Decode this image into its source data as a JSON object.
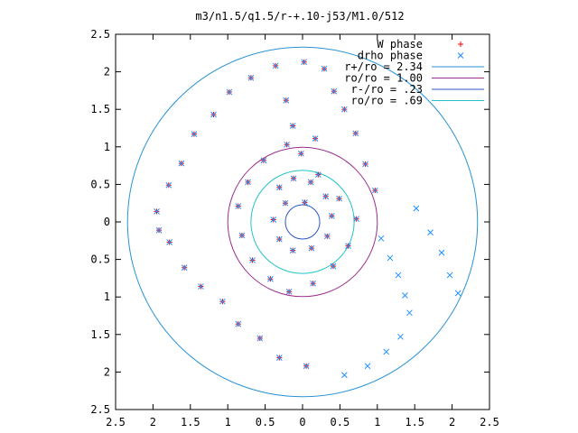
{
  "chart_data": {
    "type": "scatter",
    "title": "m3/n1.5/q1.5/r-+.10-j53/M1.0/512",
    "xlabel": "",
    "ylabel": "",
    "xlim": [
      -2.5,
      2.5
    ],
    "ylim": [
      -2.5,
      2.5
    ],
    "x_tick_values": [
      -2.5,
      -2,
      -1.5,
      -1,
      -0.5,
      0,
      0.5,
      1,
      1.5,
      2,
      2.5
    ],
    "x_tick_labels": [
      "2.5",
      "2",
      "1.5",
      "1",
      "0.5",
      "0",
      "0.5",
      "1",
      "1.5",
      "2",
      "2.5"
    ],
    "y_tick_values": [
      2.5,
      2,
      1.5,
      1,
      0.5,
      0,
      -0.5,
      -1,
      -1.5,
      -2,
      -2.5
    ],
    "y_tick_labels": [
      "2.5",
      "2",
      "1.5",
      "1",
      "0.5",
      "0",
      "0.5",
      "1",
      "1.5",
      "2",
      "2.5"
    ],
    "grid": false,
    "legend_position": "top-right",
    "series": [
      {
        "name": "W phase",
        "marker": "plus",
        "color": "#ff0000",
        "points": [
          [
            -1.95,
            0.14
          ],
          [
            -1.92,
            -0.11
          ],
          [
            -1.79,
            0.49
          ],
          [
            -1.78,
            -0.27
          ],
          [
            -1.62,
            0.78
          ],
          [
            -1.58,
            -0.61
          ],
          [
            -1.45,
            1.17
          ],
          [
            -1.36,
            -0.86
          ],
          [
            -1.19,
            1.43
          ],
          [
            -1.07,
            -1.06
          ],
          [
            -0.98,
            1.73
          ],
          [
            -0.86,
            -1.36
          ],
          [
            -0.69,
            1.92
          ],
          [
            -0.57,
            -1.55
          ],
          [
            -0.36,
            2.08
          ],
          [
            -0.31,
            -1.81
          ],
          [
            0.02,
            2.13
          ],
          [
            0.05,
            -1.92
          ],
          [
            0.29,
            2.04
          ],
          [
            0.42,
            1.74
          ],
          [
            0.56,
            1.5
          ],
          [
            0.71,
            1.18
          ],
          [
            0.84,
            0.77
          ],
          [
            0.97,
            0.42
          ],
          [
            -0.22,
            1.62
          ],
          [
            -0.13,
            1.28
          ],
          [
            -0.02,
            0.91
          ],
          [
            0.21,
            0.63
          ],
          [
            0.49,
            0.31
          ],
          [
            0.72,
            0.04
          ],
          [
            0.61,
            -0.32
          ],
          [
            0.41,
            -0.59
          ],
          [
            0.14,
            -0.82
          ],
          [
            -0.18,
            -0.93
          ],
          [
            -0.43,
            -0.76
          ],
          [
            -0.67,
            -0.51
          ],
          [
            -0.81,
            -0.18
          ],
          [
            -0.86,
            0.21
          ],
          [
            -0.73,
            0.53
          ],
          [
            -0.52,
            0.82
          ],
          [
            -0.21,
            1.03
          ],
          [
            0.17,
            1.11
          ],
          [
            -0.31,
            0.46
          ],
          [
            -0.12,
            0.58
          ],
          [
            0.11,
            0.53
          ],
          [
            0.31,
            0.34
          ],
          [
            0.39,
            0.08
          ],
          [
            0.33,
            -0.19
          ],
          [
            0.12,
            -0.35
          ],
          [
            -0.13,
            -0.38
          ],
          [
            -0.31,
            -0.23
          ],
          [
            -0.39,
            0.03
          ],
          [
            -0.23,
            0.25
          ],
          [
            0.03,
            0.26
          ]
        ]
      },
      {
        "name": "drho phase",
        "marker": "x",
        "color": "#1e90ff",
        "points": [
          [
            -1.95,
            0.14
          ],
          [
            -1.92,
            -0.11
          ],
          [
            -1.79,
            0.49
          ],
          [
            -1.78,
            -0.27
          ],
          [
            -1.62,
            0.78
          ],
          [
            -1.58,
            -0.61
          ],
          [
            -1.45,
            1.17
          ],
          [
            -1.36,
            -0.86
          ],
          [
            -1.19,
            1.43
          ],
          [
            -1.07,
            -1.06
          ],
          [
            -0.98,
            1.73
          ],
          [
            -0.86,
            -1.36
          ],
          [
            -0.69,
            1.92
          ],
          [
            -0.57,
            -1.55
          ],
          [
            -0.36,
            2.08
          ],
          [
            -0.31,
            -1.81
          ],
          [
            0.02,
            2.13
          ],
          [
            0.05,
            -1.92
          ],
          [
            0.29,
            2.04
          ],
          [
            0.42,
            1.74
          ],
          [
            0.56,
            1.5
          ],
          [
            0.71,
            1.18
          ],
          [
            0.84,
            0.77
          ],
          [
            0.97,
            0.42
          ],
          [
            -0.22,
            1.62
          ],
          [
            -0.13,
            1.28
          ],
          [
            -0.02,
            0.91
          ],
          [
            0.21,
            0.63
          ],
          [
            0.49,
            0.31
          ],
          [
            0.72,
            0.04
          ],
          [
            0.61,
            -0.32
          ],
          [
            0.41,
            -0.59
          ],
          [
            0.14,
            -0.82
          ],
          [
            -0.18,
            -0.93
          ],
          [
            -0.43,
            -0.76
          ],
          [
            -0.67,
            -0.51
          ],
          [
            -0.81,
            -0.18
          ],
          [
            -0.86,
            0.21
          ],
          [
            -0.73,
            0.53
          ],
          [
            -0.52,
            0.82
          ],
          [
            -0.21,
            1.03
          ],
          [
            0.17,
            1.11
          ],
          [
            -0.31,
            0.46
          ],
          [
            -0.12,
            0.58
          ],
          [
            0.11,
            0.53
          ],
          [
            0.31,
            0.34
          ],
          [
            0.39,
            0.08
          ],
          [
            0.33,
            -0.19
          ],
          [
            0.12,
            -0.35
          ],
          [
            -0.13,
            -0.38
          ],
          [
            -0.31,
            -0.23
          ],
          [
            -0.39,
            0.03
          ],
          [
            -0.23,
            0.25
          ],
          [
            0.03,
            0.26
          ],
          [
            1.05,
            -0.22
          ],
          [
            1.17,
            -0.48
          ],
          [
            1.28,
            -0.71
          ],
          [
            1.37,
            -0.98
          ],
          [
            1.43,
            -1.21
          ],
          [
            1.31,
            -1.53
          ],
          [
            1.12,
            -1.73
          ],
          [
            0.87,
            -1.92
          ],
          [
            0.56,
            -2.04
          ],
          [
            1.52,
            0.18
          ],
          [
            1.71,
            -0.14
          ],
          [
            1.86,
            -0.41
          ],
          [
            1.97,
            -0.71
          ],
          [
            2.08,
            -0.95
          ]
        ]
      },
      {
        "name": "r+/ro = 2.34",
        "type": "circle",
        "radius": 2.34,
        "color": "#2a93d5"
      },
      {
        "name": "ro/ro = 1.00",
        "type": "circle",
        "radius": 1.0,
        "color": "#9b2f8d"
      },
      {
        "name": "r-/ro = .23",
        "type": "circle",
        "radius": 0.23,
        "color": "#2d54c9"
      },
      {
        "name": "ro/ro = .69",
        "type": "circle",
        "radius": 0.69,
        "color": "#25c3c8"
      }
    ]
  }
}
